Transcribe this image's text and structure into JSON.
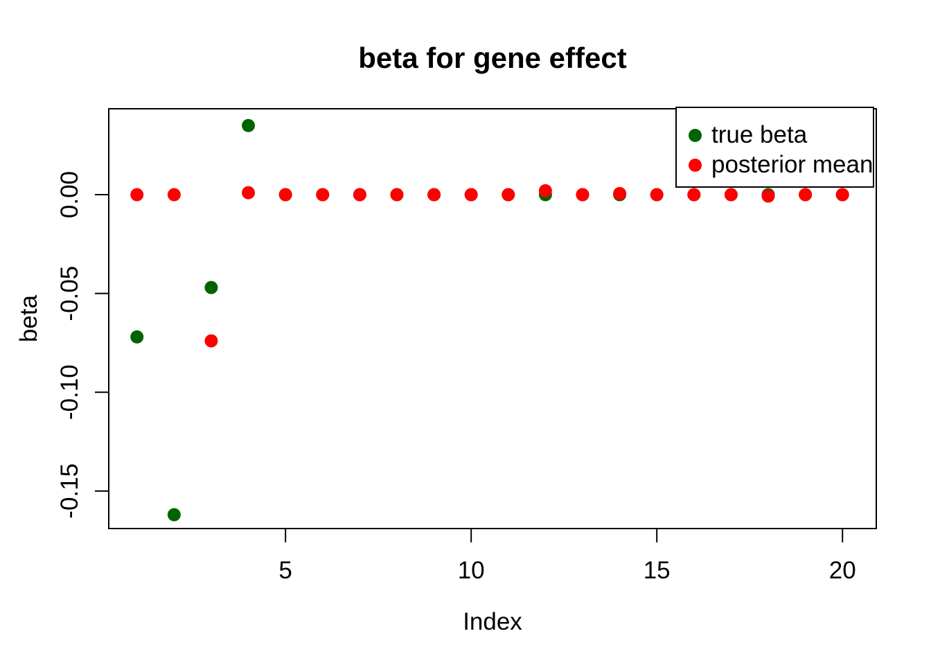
{
  "chart_data": {
    "type": "scatter",
    "title": "beta for gene effect",
    "xlabel": "Index",
    "ylabel": "beta",
    "x": [
      1,
      2,
      3,
      4,
      5,
      6,
      7,
      8,
      9,
      10,
      11,
      12,
      13,
      14,
      15,
      16,
      17,
      18,
      19,
      20
    ],
    "series": [
      {
        "name": "true beta",
        "color": "#006400",
        "marker": "circle",
        "values": [
          -0.072,
          -0.162,
          -0.047,
          0.035,
          0,
          0,
          0,
          0,
          0,
          0,
          0,
          0,
          0,
          0,
          0,
          0,
          0,
          0,
          0,
          0
        ]
      },
      {
        "name": "posterior mean",
        "color": "#ff0000",
        "marker": "circle",
        "values": [
          0,
          0,
          -0.074,
          0.001,
          0,
          0,
          0,
          0,
          0,
          0,
          0,
          0.002,
          0,
          0.0006,
          0,
          0,
          0,
          -0.0007,
          0,
          0
        ]
      }
    ],
    "xticks": {
      "values": [
        5,
        10,
        15,
        20
      ],
      "labels": [
        "5",
        "10",
        "15",
        "20"
      ]
    },
    "yticks": {
      "values": [
        0,
        -0.05,
        -0.1,
        -0.15
      ],
      "labels": [
        "0.00",
        "-0.05",
        "-0.10",
        "-0.15"
      ]
    },
    "xlim": [
      0.24,
      20.91
    ],
    "ylim": [
      -0.169,
      0.0435
    ],
    "grid": false,
    "legend_position": "topright",
    "point_radius": 9.5,
    "axis_color": "#000000",
    "background_color": "#ffffff"
  }
}
